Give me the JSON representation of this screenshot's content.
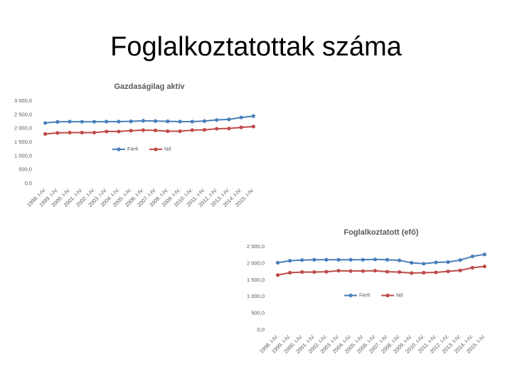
{
  "slide": {
    "title": "Foglalkoztatottak száma"
  },
  "chart_data": [
    {
      "type": "line",
      "title": "Gazdaságilag aktív",
      "categories": [
        "1998. I-IV.",
        "1999. I-IV.",
        "2000. I-IV.",
        "2001. I-IV.",
        "2002. I-IV.",
        "2003. I-IV.",
        "2004. I-IV.",
        "2005. I-IV.",
        "2006. I-IV.",
        "2007. I-IV.",
        "2008. I-IV.",
        "2009. I-IV.",
        "2010. I-IV.",
        "2011. I-IV.",
        "2012. I-IV.",
        "2013. I-IV.",
        "2014. I-IV.",
        "2015. I-IV."
      ],
      "series": [
        {
          "name": "Férfi",
          "color": "#4a7ebb",
          "values": [
            2200,
            2240,
            2250,
            2245,
            2245,
            2250,
            2250,
            2260,
            2280,
            2270,
            2260,
            2250,
            2250,
            2270,
            2310,
            2330,
            2400,
            2450
          ]
        },
        {
          "name": "Nő",
          "color": "#be4b48",
          "values": [
            1800,
            1840,
            1850,
            1850,
            1850,
            1890,
            1890,
            1920,
            1940,
            1930,
            1900,
            1900,
            1940,
            1950,
            1990,
            2000,
            2040,
            2070
          ]
        }
      ],
      "ylim": [
        0,
        3000
      ],
      "yticks": [
        {
          "value": 0,
          "label": "0,0"
        },
        {
          "value": 500,
          "label": "500,0"
        },
        {
          "value": 1000,
          "label": "1 000,0"
        },
        {
          "value": 1500,
          "label": "1 500,0"
        },
        {
          "value": 2000,
          "label": "2 000,0"
        },
        {
          "value": 2500,
          "label": "2 500,0"
        },
        {
          "value": 3000,
          "label": "3 000,0"
        }
      ],
      "grid": false,
      "legend": "center"
    },
    {
      "type": "line",
      "title": "Foglalkoztatott (efő)",
      "categories": [
        "1998. I-IV.",
        "1999. I-IV.",
        "2000. I-IV.",
        "2001. I-IV.",
        "2002. I-IV.",
        "2003. I-IV.",
        "2004. I-IV.",
        "2005. I-IV.",
        "2006. I-IV.",
        "2007. I-IV.",
        "2008. I-IV.",
        "2009. I-IV.",
        "2010. I-IV.",
        "2011. I-IV.",
        "2012. I-IV.",
        "2013. I-IV.",
        "2014. I-IV.",
        "2015. I-IV."
      ],
      "series": [
        {
          "name": "Férfi",
          "color": "#4a7ebb",
          "values": [
            2020,
            2080,
            2100,
            2110,
            2110,
            2110,
            2110,
            2110,
            2120,
            2110,
            2090,
            2020,
            1990,
            2030,
            2040,
            2100,
            2210,
            2270
          ]
        },
        {
          "name": "Nő",
          "color": "#be4b48",
          "values": [
            1650,
            1720,
            1740,
            1740,
            1750,
            1780,
            1770,
            1770,
            1780,
            1750,
            1740,
            1710,
            1720,
            1730,
            1760,
            1790,
            1870,
            1910
          ]
        }
      ],
      "ylim": [
        0,
        2500
      ],
      "yticks": [
        {
          "value": 0,
          "label": "0,0"
        },
        {
          "value": 500,
          "label": "500,0"
        },
        {
          "value": 1000,
          "label": "1 000,0"
        },
        {
          "value": 1500,
          "label": "1 500,0"
        },
        {
          "value": 2000,
          "label": "2 000,0"
        },
        {
          "value": 2500,
          "label": "2 500,0"
        }
      ],
      "grid": false,
      "legend": "center"
    }
  ]
}
